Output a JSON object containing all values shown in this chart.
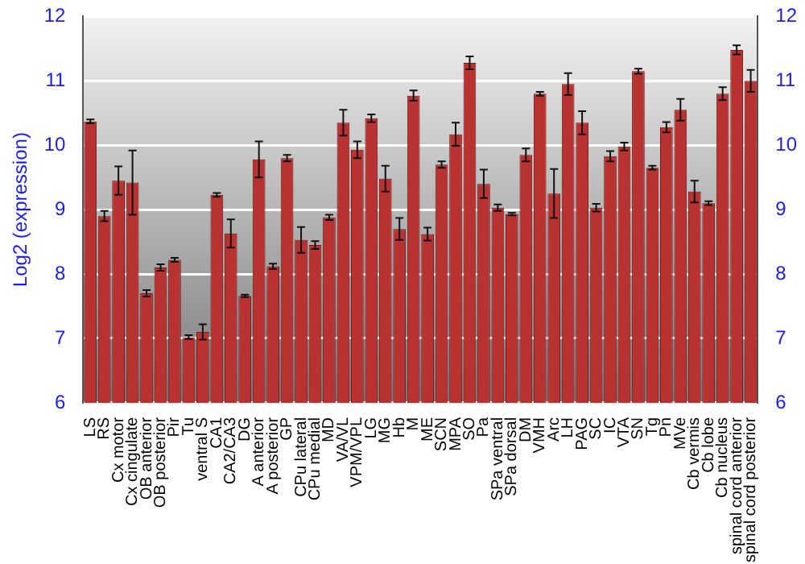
{
  "chart_data": {
    "type": "bar",
    "ylabel": "Log2 (expression)",
    "categories": [
      "LS",
      "RS",
      "Cx motor",
      "Cx cingulate",
      "OB anterior",
      "OB posterior",
      "Pir",
      "Tu",
      "ventral S",
      "CA1",
      "CA2/CA3",
      "DG",
      "A anterior",
      "A posterior",
      "GP",
      "CPu lateral",
      "CPu medial",
      "MD",
      "VA/VL",
      "VPM/VPL",
      "LG",
      "MG",
      "Hb",
      "M",
      "ME",
      "SCN",
      "MPA",
      "SO",
      "Pa",
      "SPa ventral",
      "SPa dorsal",
      "DM",
      "VMH",
      "Arc",
      "LH",
      "PAG",
      "SC",
      "IC",
      "VTA",
      "SN",
      "Tg",
      "Pn",
      "MVe",
      "Cb vermis",
      "Cb lobe",
      "Cb nucleus",
      "spinal cord anterior",
      "spinal cord posterior"
    ],
    "values": [
      10.37,
      8.9,
      9.45,
      9.42,
      7.7,
      8.1,
      8.22,
      7.02,
      7.1,
      9.23,
      8.63,
      7.66,
      9.78,
      8.12,
      9.8,
      8.53,
      8.45,
      8.88,
      10.35,
      9.93,
      10.42,
      9.48,
      8.7,
      10.77,
      8.62,
      9.7,
      10.17,
      11.28,
      9.4,
      9.03,
      8.93,
      9.85,
      10.8,
      9.25,
      10.95,
      10.35,
      9.03,
      9.83,
      9.98,
      11.15,
      9.65,
      10.28,
      10.55,
      9.28,
      9.1,
      10.8,
      11.48,
      11.0
    ],
    "errors": [
      0.03,
      0.08,
      0.22,
      0.5,
      0.05,
      0.05,
      0.03,
      0.03,
      0.12,
      0.03,
      0.22,
      0.02,
      0.28,
      0.04,
      0.05,
      0.2,
      0.06,
      0.04,
      0.2,
      0.13,
      0.06,
      0.2,
      0.17,
      0.08,
      0.1,
      0.05,
      0.18,
      0.1,
      0.22,
      0.05,
      0.02,
      0.1,
      0.03,
      0.38,
      0.17,
      0.18,
      0.06,
      0.08,
      0.06,
      0.04,
      0.03,
      0.08,
      0.17,
      0.17,
      0.03,
      0.1,
      0.07,
      0.17
    ],
    "color": "#b83232",
    "ylim": [
      6,
      12
    ],
    "yticks": [
      6,
      7,
      8,
      9,
      10,
      11,
      12
    ],
    "y2lim": [
      6,
      12
    ],
    "y2ticks": [
      6,
      7,
      8,
      9,
      10,
      11,
      12
    ],
    "grid": "y",
    "legend": false
  }
}
